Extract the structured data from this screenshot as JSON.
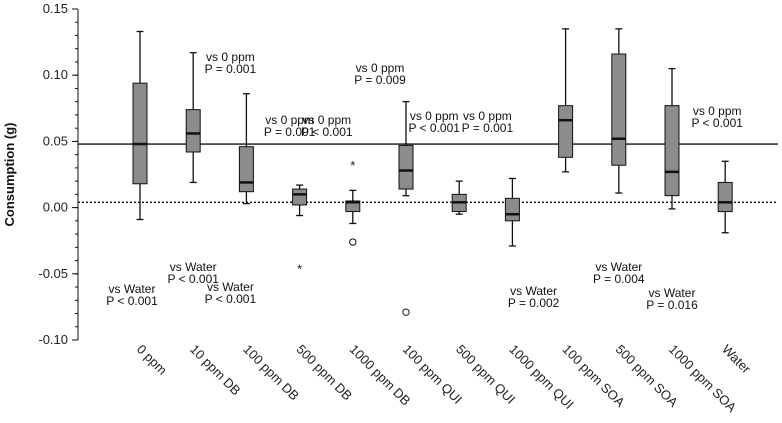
{
  "chart_data": {
    "type": "boxplot",
    "ylabel": "Consumption (g)",
    "xlabel": "",
    "ylim": [
      -0.1,
      0.15
    ],
    "yticks": [
      0.15,
      0.1,
      0.05,
      0.0,
      -0.05,
      -0.1
    ],
    "ytick_labels": [
      "0.15",
      "0.10",
      "0.05",
      "0.00",
      "-0.05",
      "-0.10"
    ],
    "reference_lines": [
      {
        "name": "0ppm-median",
        "value": 0.048,
        "style": "solid"
      },
      {
        "name": "water-median",
        "value": 0.004,
        "style": "dotted"
      }
    ],
    "categories": [
      "0 ppm",
      "10 ppm DB",
      "100 ppm DB",
      "500 ppm DB",
      "1000 ppm DB",
      "100 ppm QUI",
      "500 ppm QUI",
      "1000 ppm QUI",
      "100 ppm SOA",
      "500 ppm SOA",
      "1000 ppm SOA",
      "Water"
    ],
    "boxes": [
      {
        "category": "0 ppm",
        "whisker_low": -0.009,
        "q1": 0.018,
        "median": 0.048,
        "q3": 0.094,
        "whisker_high": 0.133,
        "outliers": [],
        "extremes": []
      },
      {
        "category": "10 ppm DB",
        "whisker_low": 0.019,
        "q1": 0.042,
        "median": 0.056,
        "q3": 0.074,
        "whisker_high": 0.117,
        "outliers": [],
        "extremes": []
      },
      {
        "category": "100 ppm DB",
        "whisker_low": 0.003,
        "q1": 0.012,
        "median": 0.019,
        "q3": 0.046,
        "whisker_high": 0.086,
        "outliers": [],
        "extremes": []
      },
      {
        "category": "500 ppm DB",
        "whisker_low": -0.006,
        "q1": 0.002,
        "median": 0.01,
        "q3": 0.014,
        "whisker_high": 0.017,
        "outliers": [],
        "extremes": [
          -0.046
        ]
      },
      {
        "category": "1000 ppm DB",
        "whisker_low": -0.012,
        "q1": -0.003,
        "median": 0.004,
        "q3": 0.005,
        "whisker_high": 0.013,
        "outliers": [
          -0.026
        ],
        "extremes": [
          0.032
        ]
      },
      {
        "category": "100 ppm QUI",
        "whisker_low": 0.009,
        "q1": 0.014,
        "median": 0.028,
        "q3": 0.047,
        "whisker_high": 0.08,
        "outliers": [
          -0.079
        ],
        "extremes": []
      },
      {
        "category": "500 ppm QUI",
        "whisker_low": -0.005,
        "q1": -0.003,
        "median": 0.004,
        "q3": 0.01,
        "whisker_high": 0.02,
        "outliers": [],
        "extremes": []
      },
      {
        "category": "1000 ppm QUI",
        "whisker_low": -0.029,
        "q1": -0.01,
        "median": -0.005,
        "q3": 0.007,
        "whisker_high": 0.022,
        "outliers": [],
        "extremes": []
      },
      {
        "category": "100 ppm SOA",
        "whisker_low": 0.027,
        "q1": 0.038,
        "median": 0.066,
        "q3": 0.077,
        "whisker_high": 0.135,
        "outliers": [],
        "extremes": []
      },
      {
        "category": "500 ppm SOA",
        "whisker_low": 0.011,
        "q1": 0.032,
        "median": 0.052,
        "q3": 0.116,
        "whisker_high": 0.135,
        "outliers": [],
        "extremes": []
      },
      {
        "category": "1000 ppm SOA",
        "whisker_low": -0.001,
        "q1": 0.009,
        "median": 0.027,
        "q3": 0.077,
        "whisker_high": 0.105,
        "outliers": [],
        "extremes": []
      },
      {
        "category": "Water",
        "whisker_low": -0.019,
        "q1": -0.003,
        "median": 0.004,
        "q3": 0.019,
        "whisker_high": 0.035,
        "outliers": [],
        "extremes": []
      }
    ],
    "annotations": [
      {
        "category": "0 ppm",
        "line1": "vs Water",
        "line2": "P < 0.001",
        "group": "water"
      },
      {
        "category": "10 ppm DB",
        "line1": "vs Water",
        "line2": "P < 0.001",
        "group": "water"
      },
      {
        "category": "100 ppm DB",
        "line1": "vs 0 ppm",
        "line2": "P = 0.001",
        "group": "zero"
      },
      {
        "category": "100 ppm DB",
        "line1": "vs Water",
        "line2": "P < 0.001",
        "group": "water"
      },
      {
        "category": "500 ppm DB",
        "line1": "vs 0 ppm",
        "line2": "P = 0.001",
        "group": "zero"
      },
      {
        "category": "1000 ppm DB",
        "line1": "vs 0 ppm",
        "line2": "P < 0.001",
        "group": "zero"
      },
      {
        "category": "100 ppm QUI",
        "line1": "vs 0 ppm",
        "line2": "P = 0.009",
        "group": "zero"
      },
      {
        "category": "500 ppm QUI",
        "line1": "vs 0 ppm",
        "line2": "P < 0.001",
        "group": "zero"
      },
      {
        "category": "1000 ppm QUI",
        "line1": "vs 0 ppm",
        "line2": "P = 0.001",
        "group": "zero"
      },
      {
        "category": "100 ppm SOA",
        "line1": "vs Water",
        "line2": "P = 0.002",
        "group": "water"
      },
      {
        "category": "500 ppm SOA",
        "line1": "vs Water",
        "line2": "P = 0.004",
        "group": "water"
      },
      {
        "category": "1000 ppm SOA",
        "line1": "vs Water",
        "line2": "P = 0.016",
        "group": "water"
      },
      {
        "category": "Water",
        "line1": "vs 0 ppm",
        "line2": "P < 0.001",
        "group": "zero"
      }
    ]
  },
  "colors": {
    "box_fill": "#8c8c8c",
    "line": "#111111",
    "background": "#ffffff"
  }
}
